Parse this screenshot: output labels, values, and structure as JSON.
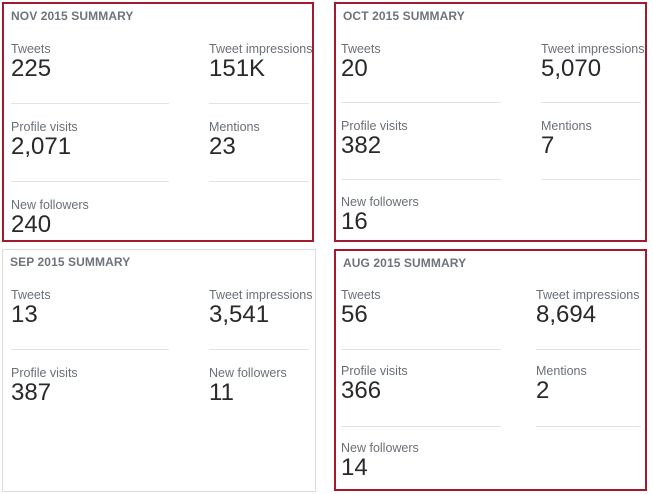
{
  "nov": {
    "title": "NOV 2015 SUMMARY",
    "tweets_label": "Tweets",
    "tweets_value": "225",
    "impressions_label": "Tweet impressions",
    "impressions_value": "151K",
    "profile_label": "Profile visits",
    "profile_value": "2,071",
    "mentions_label": "Mentions",
    "mentions_value": "23",
    "followers_label": "New followers",
    "followers_value": "240"
  },
  "oct": {
    "title": "OCT 2015 SUMMARY",
    "tweets_label": "Tweets",
    "tweets_value": "20",
    "impressions_label": "Tweet impressions",
    "impressions_value": "5,070",
    "profile_label": "Profile visits",
    "profile_value": "382",
    "mentions_label": "Mentions",
    "mentions_value": "7",
    "followers_label": "New followers",
    "followers_value": "16"
  },
  "sep": {
    "title": "SEP 2015 SUMMARY",
    "tweets_label": "Tweets",
    "tweets_value": "13",
    "impressions_label": "Tweet impressions",
    "impressions_value": "3,541",
    "profile_label": "Profile visits",
    "profile_value": "387",
    "followers_label": "New followers",
    "followers_value": "11"
  },
  "aug": {
    "title": "AUG 2015 SUMMARY",
    "tweets_label": "Tweets",
    "tweets_value": "56",
    "impressions_label": "Tweet impressions",
    "impressions_value": "8,694",
    "profile_label": "Profile visits",
    "profile_value": "366",
    "mentions_label": "Mentions",
    "mentions_value": "2",
    "followers_label": "New followers",
    "followers_value": "14"
  },
  "colors": {
    "highlight_border": "#a5192e",
    "plain_border": "#dcdcdc",
    "label": "#6a7078",
    "value": "#28292b"
  }
}
